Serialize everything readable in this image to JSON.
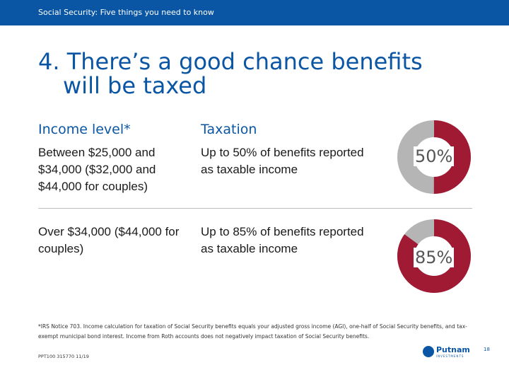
{
  "header": {
    "text": "Social Security: Five things you need to know"
  },
  "title": {
    "line1": "4. There’s a good chance benefits",
    "line2": "will be taxed"
  },
  "table": {
    "headers": {
      "income": "Income level*",
      "taxation": "Taxation"
    },
    "rows": [
      {
        "income": "Between $25,000 and $34,000 ($32,000 and $44,000 for couples)",
        "taxation": "Up to 50% of benefits reported as taxable income",
        "percent_label": "50%",
        "percent": 50
      },
      {
        "income": "Over $34,000 ($44,000 for couples)",
        "taxation": "Up to 85% of benefits reported as taxable income",
        "percent_label": "85%",
        "percent": 85
      }
    ]
  },
  "colors": {
    "brand": "#0b56a4",
    "filled": "#a11a34",
    "remainder": "#b5b5b5"
  },
  "footnote": "*IRS Notice 703. Income calculation for taxation of Social Security benefits equals your adjusted gross income (AGI), one-half of Social Security benefits, and tax-exempt municipal bond interest. Income from Roth accounts does not negatively impact taxation of Social Security benefits.",
  "doc_code": "PPT100 315770 11/19",
  "logo": {
    "name": "Putnam",
    "sub": "INVESTMENTS"
  },
  "page_number": "18"
}
